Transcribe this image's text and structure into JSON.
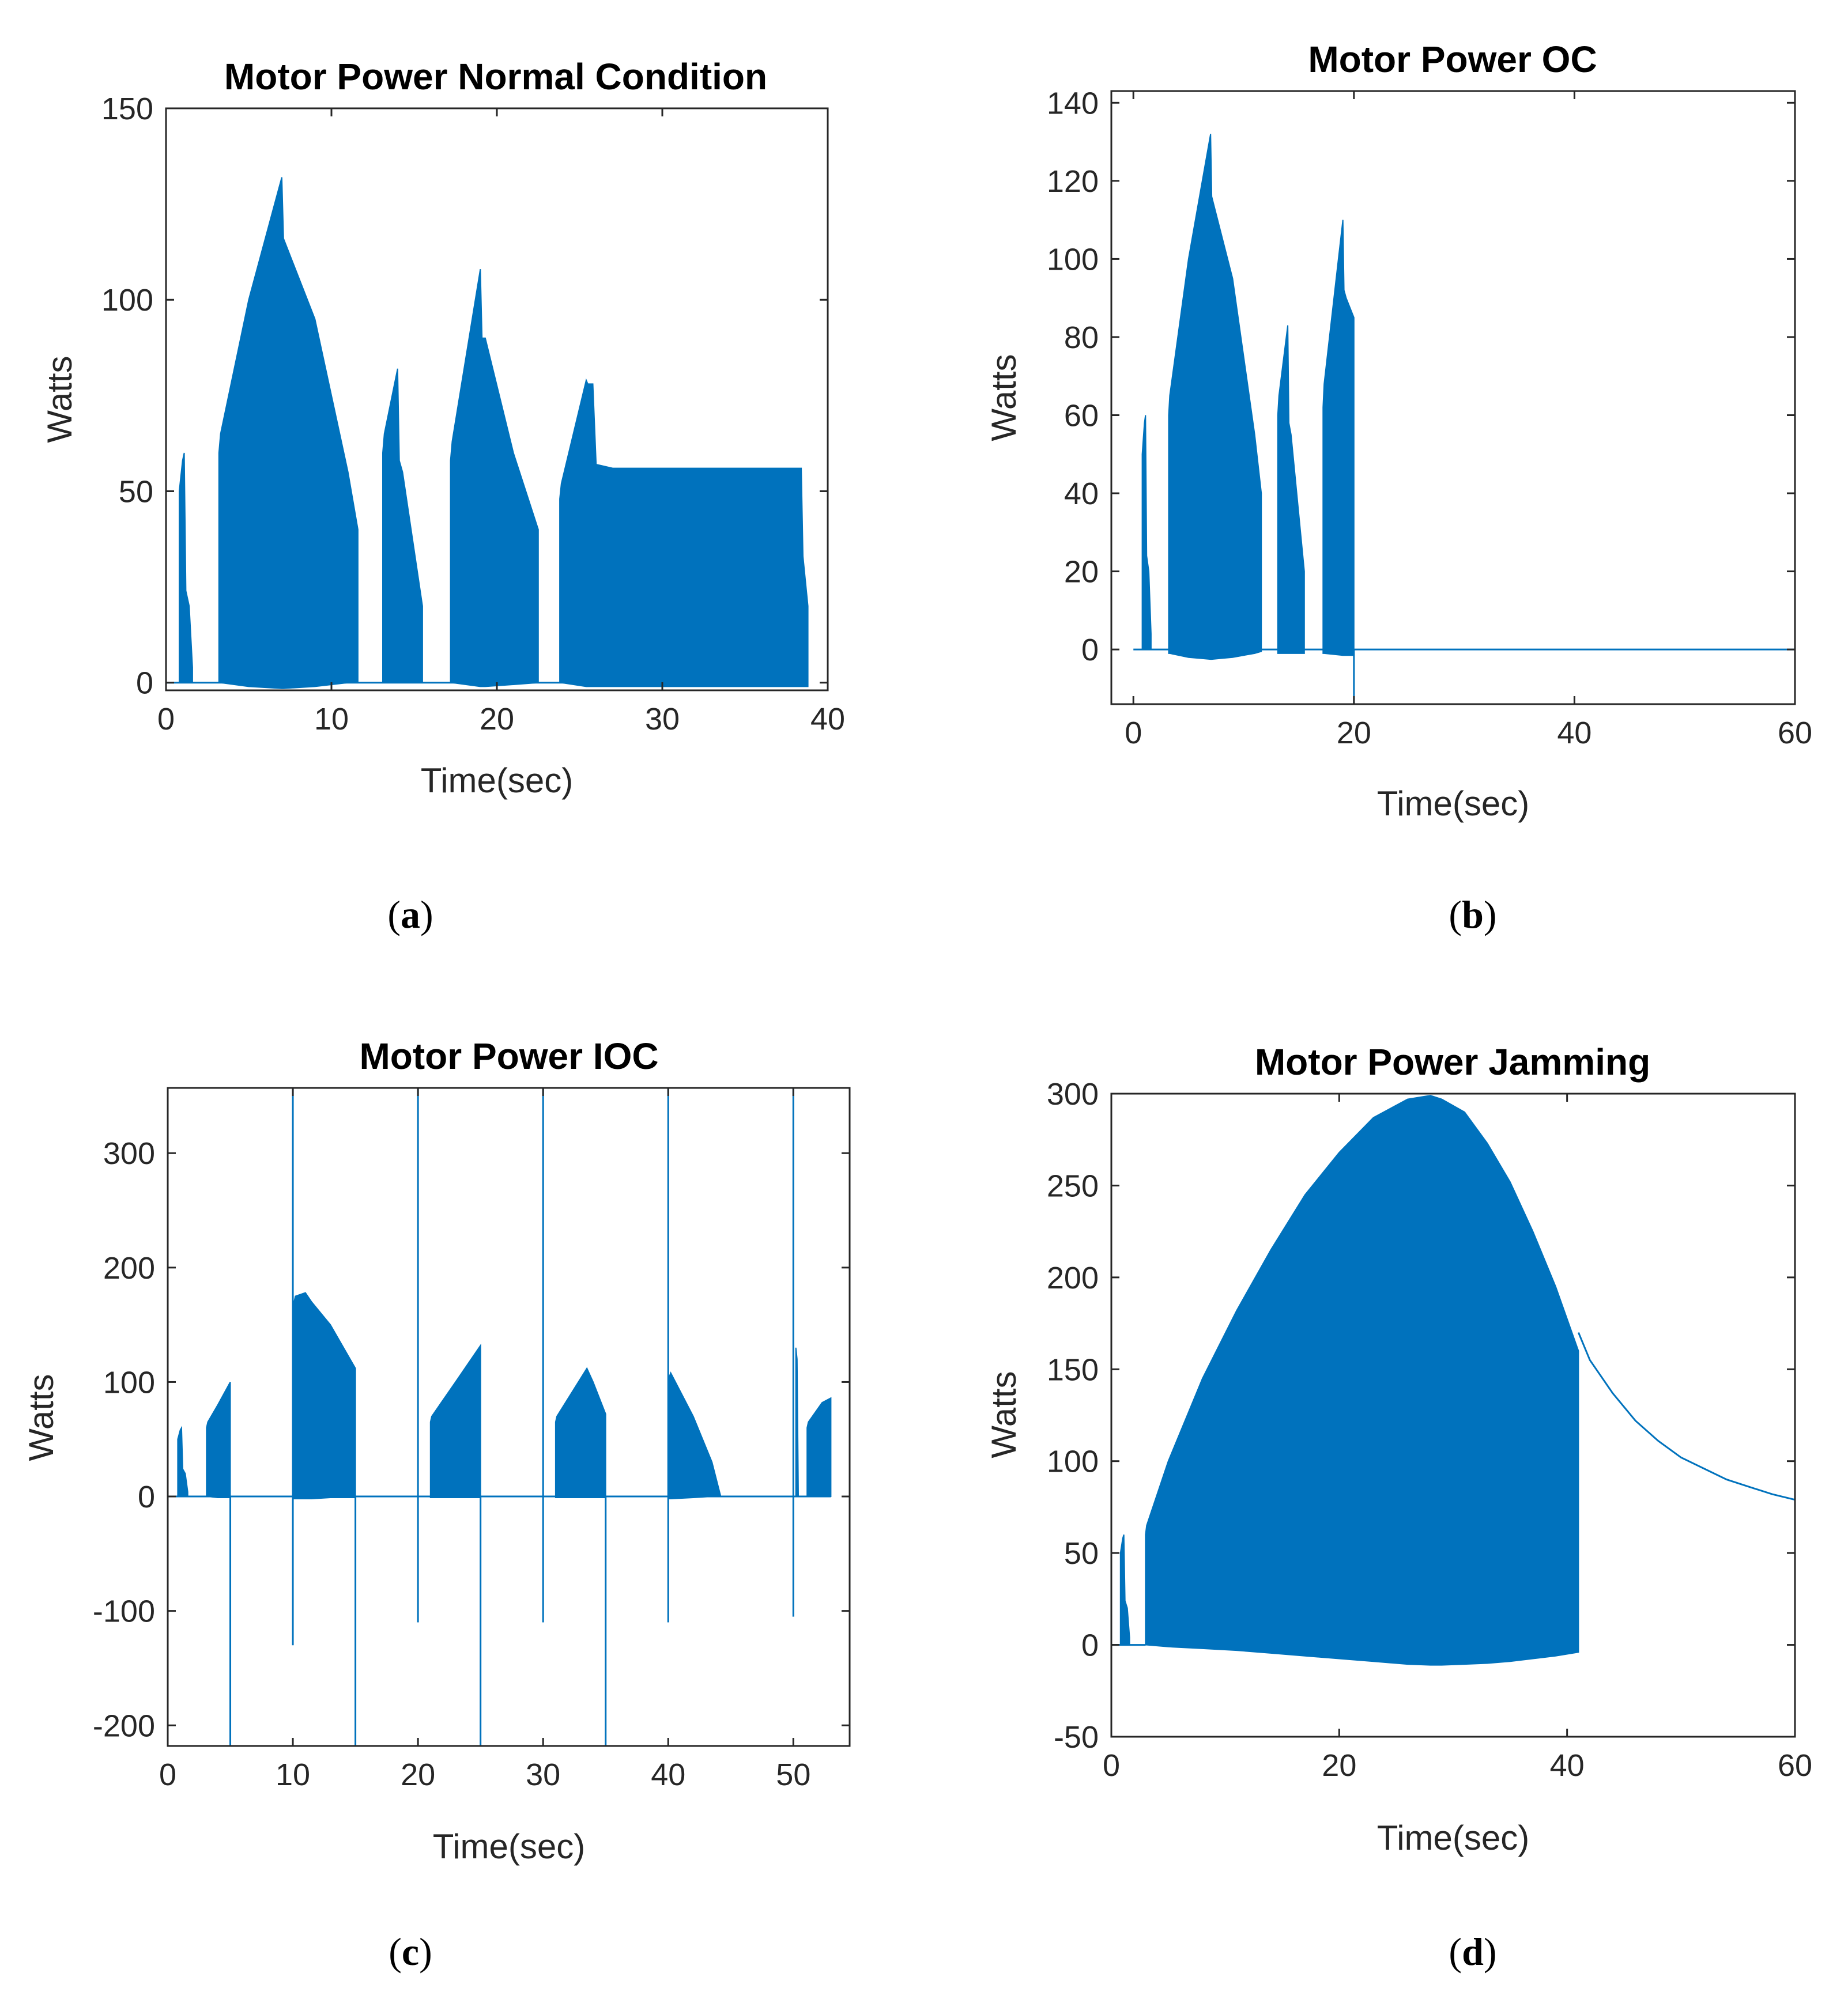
{
  "chart_data": [
    {
      "id": "a",
      "caption_letter": "a",
      "type": "area",
      "title": "Motor Power Normal Condition",
      "xlabel": "Time(sec)",
      "ylabel": "Watts",
      "xlim": [
        0,
        40
      ],
      "ylim": [
        -2,
        150
      ],
      "xticks": [
        0,
        10,
        20,
        30,
        40
      ],
      "yticks": [
        0,
        50,
        100,
        150
      ],
      "color": "#0072BD",
      "baseline": {
        "x": [
          0,
          38.5
        ],
        "value": 0
      },
      "bursts": [
        {
          "x": [
            0.8,
            1.0,
            1.1,
            1.2,
            1.4,
            1.6
          ],
          "top": [
            50,
            58,
            60,
            24,
            20,
            4
          ],
          "bottom": [
            0,
            0,
            0,
            0,
            0,
            0
          ]
        },
        {
          "x": [
            3.2,
            3.3,
            5,
            7,
            7.1,
            9,
            11,
            11.6
          ],
          "top": [
            60,
            65,
            100,
            132,
            116,
            95,
            55,
            40
          ],
          "bottom": [
            0,
            0,
            -1,
            -1.5,
            -1.5,
            -1,
            0,
            0
          ]
        },
        {
          "x": [
            13.1,
            13.2,
            14,
            14.1,
            14.3,
            15.5
          ],
          "top": [
            60,
            65,
            82,
            58,
            55,
            20
          ],
          "bottom": [
            0,
            0,
            0,
            0,
            0,
            0
          ]
        },
        {
          "x": [
            17.2,
            17.3,
            19,
            19.1,
            19.3,
            21,
            22.5
          ],
          "top": [
            58,
            63,
            108,
            90,
            90,
            60,
            40
          ],
          "bottom": [
            0,
            0,
            -1,
            -1,
            -1,
            -0.5,
            0
          ]
        },
        {
          "x": [
            23.8,
            23.9,
            25.4,
            25.5,
            25.8,
            26,
            27,
            30,
            38.4,
            38.5,
            38.8
          ],
          "top": [
            48,
            52,
            79,
            78,
            78,
            57,
            56,
            56,
            56,
            33,
            20
          ],
          "bottom": [
            0,
            0,
            -1,
            -1,
            -1,
            -1,
            -1,
            -1,
            -1,
            -1,
            -1
          ]
        }
      ]
    },
    {
      "id": "b",
      "caption_letter": "b",
      "type": "area",
      "title": "Motor Power OC",
      "xlabel": "Time(sec)",
      "ylabel": "Watts",
      "xlim": [
        -2,
        60
      ],
      "ylim": [
        -14,
        143
      ],
      "xticks": [
        0,
        20,
        40,
        60
      ],
      "yticks": [
        0,
        20,
        40,
        60,
        80,
        100,
        120,
        140
      ],
      "color": "#0072BD",
      "baseline": {
        "x": [
          0,
          60
        ],
        "value": 0
      },
      "spikes": [
        {
          "x": 20,
          "from": 0,
          "to": -14
        }
      ],
      "bursts": [
        {
          "x": [
            0.8,
            1.0,
            1.1,
            1.2,
            1.4,
            1.6
          ],
          "top": [
            50,
            58,
            60,
            24,
            20,
            4
          ],
          "bottom": [
            0,
            0,
            0,
            0,
            0,
            0
          ]
        },
        {
          "x": [
            3.2,
            3.3,
            5,
            7,
            7.1,
            9,
            11,
            11.6
          ],
          "top": [
            60,
            65,
            100,
            132,
            116,
            95,
            55,
            40
          ],
          "bottom": [
            -1,
            -1,
            -2,
            -2.5,
            -2.5,
            -2,
            -1,
            -0.5
          ]
        },
        {
          "x": [
            13.1,
            13.2,
            14,
            14.1,
            14.3,
            15.5
          ],
          "top": [
            60,
            65,
            83,
            58,
            55,
            20
          ],
          "bottom": [
            -1,
            -1,
            -1,
            -1,
            -1,
            -1
          ]
        },
        {
          "x": [
            17.2,
            17.3,
            19,
            19.1,
            19.3,
            20
          ],
          "top": [
            62,
            68,
            110,
            92,
            90,
            85
          ],
          "bottom": [
            -1,
            -1,
            -1.5,
            -1.5,
            -1.5,
            -1.5
          ]
        }
      ]
    },
    {
      "id": "c",
      "caption_letter": "c",
      "type": "area",
      "title": "Motor Power IOC",
      "xlabel": "Time(sec)",
      "ylabel": "Watts",
      "xlim": [
        0,
        54.5
      ],
      "ylim": [
        -218,
        357
      ],
      "xticks": [
        0,
        10,
        20,
        30,
        40,
        50
      ],
      "yticks": [
        -200,
        -100,
        0,
        100,
        200,
        300
      ],
      "color": "#0072BD",
      "baseline": {
        "x": [
          0,
          53
        ],
        "value": 0
      },
      "spikes": [
        {
          "x": 5,
          "from": 0,
          "to": -218
        },
        {
          "x": 10,
          "from": 357,
          "to": -130
        },
        {
          "x": 15,
          "from": 0,
          "to": -218
        },
        {
          "x": 20,
          "from": 357,
          "to": -110
        },
        {
          "x": 25,
          "from": 0,
          "to": -218
        },
        {
          "x": 30,
          "from": 357,
          "to": -110
        },
        {
          "x": 35,
          "from": 0,
          "to": -218
        },
        {
          "x": 40,
          "from": 357,
          "to": -110
        },
        {
          "x": 50,
          "from": 357,
          "to": -105
        }
      ],
      "bursts": [
        {
          "x": [
            0.8,
            1.0,
            1.1,
            1.2,
            1.4,
            1.6
          ],
          "top": [
            50,
            58,
            60,
            24,
            20,
            4
          ],
          "bottom": [
            0,
            0,
            0,
            0,
            0,
            0
          ]
        },
        {
          "x": [
            3.1,
            3.2,
            4,
            5
          ],
          "top": [
            60,
            65,
            80,
            100
          ],
          "bottom": [
            0,
            0,
            -1,
            -1
          ]
        },
        {
          "x": [
            10.1,
            10.2,
            11,
            11.5,
            13,
            15
          ],
          "top": [
            170,
            175,
            178,
            170,
            150,
            112
          ],
          "bottom": [
            -2,
            -2,
            -2,
            -2,
            -1,
            -1
          ]
        },
        {
          "x": [
            21,
            21.1,
            23,
            25
          ],
          "top": [
            65,
            70,
            100,
            132
          ],
          "bottom": [
            -1,
            -1,
            -1,
            -1
          ]
        },
        {
          "x": [
            31,
            31.1,
            33.5,
            34,
            35
          ],
          "top": [
            65,
            70,
            112,
            100,
            72
          ],
          "bottom": [
            -1,
            -1,
            -1,
            -1,
            -1
          ]
        },
        {
          "x": [
            40.1,
            40.2,
            42,
            43.5,
            44.2
          ],
          "top": [
            105,
            108,
            70,
            30,
            0
          ],
          "bottom": [
            -2,
            -2,
            -1,
            0,
            0
          ]
        },
        {
          "x": [
            50.2,
            50.3,
            50.4
          ],
          "top": [
            130,
            120,
            0
          ],
          "bottom": [
            0,
            0,
            0
          ]
        },
        {
          "x": [
            51.1,
            51.2,
            52.3,
            53
          ],
          "top": [
            60,
            65,
            82,
            86
          ],
          "bottom": [
            0,
            0,
            0,
            0
          ]
        }
      ]
    },
    {
      "id": "d",
      "caption_letter": "d",
      "type": "area",
      "title": "Motor Power Jamming",
      "xlabel": "Time(sec)",
      "ylabel": "Watts",
      "xlim": [
        0,
        60
      ],
      "ylim": [
        -50,
        300
      ],
      "xticks": [
        0,
        20,
        40,
        60
      ],
      "yticks": [
        -50,
        0,
        50,
        100,
        150,
        200,
        250,
        300
      ],
      "color": "#0072BD",
      "baseline": {
        "x": [
          0,
          3
        ],
        "value": 0
      },
      "bursts": [
        {
          "x": [
            0.8,
            1.0,
            1.1,
            1.2,
            1.4,
            1.6
          ],
          "top": [
            50,
            58,
            60,
            24,
            20,
            4
          ],
          "bottom": [
            0,
            0,
            0,
            0,
            0,
            0
          ]
        },
        {
          "x": [
            3,
            3.1,
            5,
            8,
            11,
            14,
            17,
            20,
            23,
            26,
            28,
            29,
            31,
            33,
            35,
            37,
            39,
            41
          ],
          "top": [
            60,
            65,
            100,
            145,
            182,
            215,
            245,
            268,
            287,
            297,
            299,
            297,
            290,
            273,
            252,
            225,
            195,
            160
          ],
          "bottom": [
            0,
            0,
            -1,
            -2,
            -3,
            -4.5,
            -6,
            -7.5,
            -9,
            -10.5,
            -11,
            -11,
            -10.5,
            -10,
            -9,
            -7.5,
            -6,
            -4
          ]
        }
      ],
      "tail": {
        "x": [
          41,
          42,
          44,
          46,
          48,
          50,
          52,
          54,
          56,
          58,
          60
        ],
        "y": [
          170,
          155,
          137,
          122,
          111,
          102,
          96,
          90,
          86,
          82,
          79
        ]
      }
    }
  ]
}
